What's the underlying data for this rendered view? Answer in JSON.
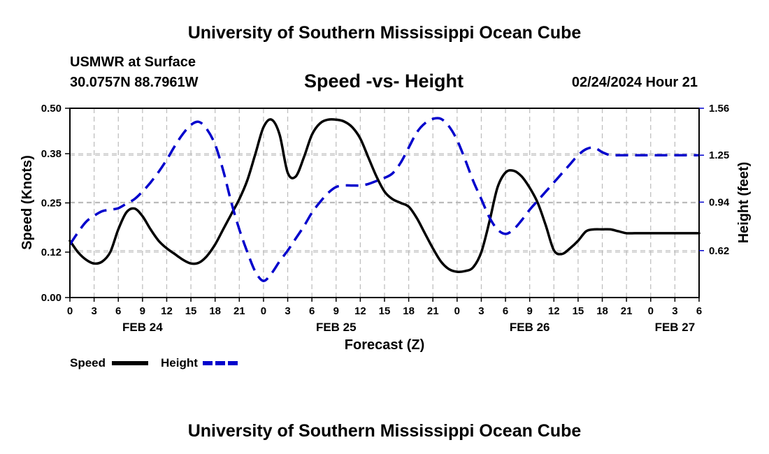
{
  "header": {
    "title": "University of Southern Mississippi Ocean Cube",
    "station": "USMWR at Surface",
    "coords": "30.0757N  88.7961W",
    "datetime": "02/24/2024 Hour 21",
    "footer_title": "University of Southern Mississippi Ocean Cube"
  },
  "chart_data": {
    "type": "line",
    "title": "Speed -vs- Height",
    "xlabel": "Forecast (Z)",
    "ylabel_left": "Speed (Knots)",
    "ylabel_right": "Height (feet)",
    "x_hours_range": [
      0,
      78
    ],
    "x_tick_labels": [
      "0",
      "3",
      "6",
      "9",
      "12",
      "15",
      "18",
      "21",
      "0",
      "3",
      "6",
      "9",
      "12",
      "15",
      "18",
      "21",
      "0",
      "3",
      "6",
      "9",
      "12",
      "15",
      "18",
      "21",
      "0",
      "3",
      "6"
    ],
    "date_labels": [
      {
        "label": "FEB 24",
        "hour": 9
      },
      {
        "label": "FEB 25",
        "hour": 33
      },
      {
        "label": "FEB 26",
        "hour": 57
      },
      {
        "label": "FEB 27",
        "hour": 75
      }
    ],
    "y_left": {
      "range": [
        0,
        0.5
      ],
      "ticks": [
        "0.00",
        "0.12",
        "0.25",
        "0.38",
        "0.50"
      ]
    },
    "y_right": {
      "range": [
        0.31,
        1.56
      ],
      "ticks": [
        "0.62",
        "0.94",
        "1.25",
        "1.56"
      ]
    },
    "grid": true,
    "legend": [
      {
        "name": "Speed",
        "color": "#000000",
        "style": "solid"
      },
      {
        "name": "Height",
        "color": "#0000cc",
        "style": "dashed"
      }
    ],
    "series": [
      {
        "name": "Speed",
        "axis": "left",
        "color": "#000000",
        "style": "solid",
        "hours": [
          0,
          1,
          2,
          3,
          4,
          5,
          6,
          7,
          8,
          9,
          10,
          11,
          12,
          13,
          14,
          15,
          16,
          17,
          18,
          19,
          20,
          21,
          22,
          23,
          24,
          25,
          26,
          27,
          28,
          29,
          30,
          31,
          32,
          33,
          34,
          35,
          36,
          37,
          38,
          39,
          40,
          41,
          42,
          43,
          44,
          45,
          46,
          47,
          48,
          49,
          50,
          51,
          52,
          53,
          54,
          55,
          56,
          57,
          58,
          59,
          60,
          61,
          62,
          63,
          64,
          65,
          66,
          67,
          68,
          69,
          70,
          71,
          72,
          73,
          74,
          75,
          76,
          77,
          78
        ],
        "values": [
          0.15,
          0.12,
          0.1,
          0.09,
          0.095,
          0.12,
          0.18,
          0.225,
          0.235,
          0.215,
          0.18,
          0.15,
          0.13,
          0.115,
          0.1,
          0.09,
          0.092,
          0.11,
          0.14,
          0.18,
          0.22,
          0.26,
          0.31,
          0.38,
          0.45,
          0.47,
          0.43,
          0.33,
          0.32,
          0.37,
          0.43,
          0.46,
          0.47,
          0.47,
          0.465,
          0.45,
          0.42,
          0.37,
          0.32,
          0.28,
          0.26,
          0.25,
          0.24,
          0.21,
          0.17,
          0.13,
          0.095,
          0.075,
          0.068,
          0.07,
          0.08,
          0.12,
          0.2,
          0.29,
          0.33,
          0.335,
          0.32,
          0.29,
          0.25,
          0.19,
          0.125,
          0.115,
          0.13,
          0.15,
          0.175,
          0.18,
          0.18,
          0.18,
          0.175,
          0.17,
          0.17,
          0.17,
          0.17,
          0.17,
          0.17,
          0.17,
          0.17,
          0.17,
          0.17
        ]
      },
      {
        "name": "Height",
        "axis": "right",
        "color": "#0000cc",
        "style": "dashed",
        "hours": [
          0,
          1,
          2,
          3,
          4,
          5,
          6,
          7,
          8,
          9,
          10,
          11,
          12,
          13,
          14,
          15,
          16,
          17,
          18,
          19,
          20,
          21,
          22,
          23,
          24,
          25,
          26,
          27,
          28,
          29,
          30,
          31,
          32,
          33,
          34,
          35,
          36,
          37,
          38,
          39,
          40,
          41,
          42,
          43,
          44,
          45,
          46,
          47,
          48,
          49,
          50,
          51,
          52,
          53,
          54,
          55,
          56,
          57,
          58,
          59,
          60,
          61,
          62,
          63,
          64,
          65,
          66,
          67,
          68,
          69,
          70,
          71,
          72,
          73,
          74,
          75,
          76,
          77,
          78
        ],
        "values": [
          0.66,
          0.74,
          0.81,
          0.85,
          0.88,
          0.89,
          0.9,
          0.93,
          0.96,
          1.01,
          1.07,
          1.14,
          1.22,
          1.31,
          1.39,
          1.45,
          1.47,
          1.42,
          1.32,
          1.15,
          0.94,
          0.76,
          0.61,
          0.48,
          0.42,
          0.47,
          0.55,
          0.62,
          0.7,
          0.78,
          0.87,
          0.94,
          1.0,
          1.04,
          1.05,
          1.05,
          1.05,
          1.06,
          1.08,
          1.1,
          1.13,
          1.2,
          1.3,
          1.4,
          1.46,
          1.49,
          1.49,
          1.44,
          1.35,
          1.22,
          1.08,
          0.96,
          0.84,
          0.76,
          0.73,
          0.76,
          0.82,
          0.89,
          0.95,
          1.01,
          1.07,
          1.13,
          1.19,
          1.25,
          1.29,
          1.3,
          1.27,
          1.25,
          1.25,
          1.25,
          1.25,
          1.25,
          1.25,
          1.25,
          1.25,
          1.25,
          1.25,
          1.25,
          1.25
        ]
      }
    ]
  }
}
